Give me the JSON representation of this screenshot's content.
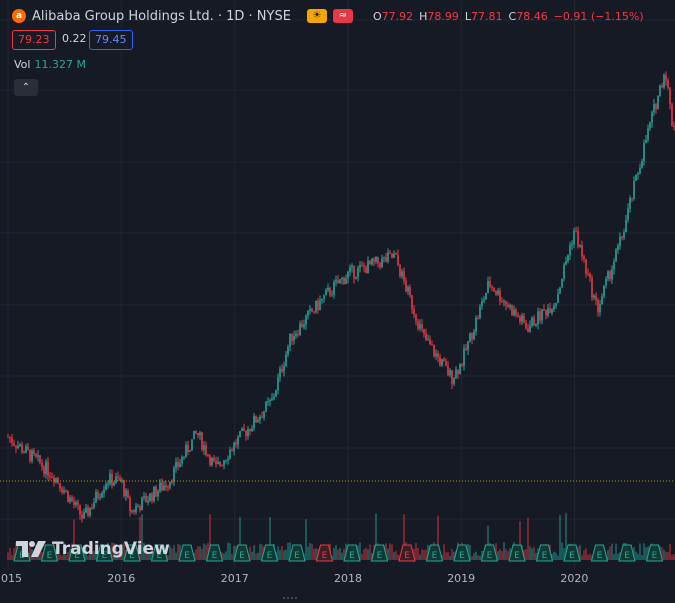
{
  "legend": {
    "symbol_logo": "a",
    "title": "Alibaba Group Holdings Ltd. · 1D · NYSE",
    "badges": [
      "☀",
      "≈"
    ],
    "o_label": "O",
    "o_value": "77.92",
    "h_label": "H",
    "h_value": "78.99",
    "l_label": "L",
    "l_value": "77.81",
    "c_label": "C",
    "c_value": "78.46",
    "change": "−0.91 (−1.15%)"
  },
  "trade": {
    "bid": "79.23",
    "spread": "0.22",
    "ask": "79.45"
  },
  "volume": {
    "label": "Vol",
    "value": "11.327 M"
  },
  "collapse_icon": "chevron-up-icon",
  "watermark": "TradingView",
  "colors": {
    "up": "#26a69a",
    "down": "#f23645",
    "background": "#161a25",
    "grid": "#232632",
    "price_line": "#b8a000"
  },
  "chart_data": {
    "type": "candlestick",
    "symbol": "Alibaba Group Holdings Ltd.",
    "interval": "1D",
    "exchange": "NYSE",
    "price_line_value": 79.23,
    "x_ticks": [
      "2015",
      "2016",
      "2017",
      "2018",
      "2019",
      "2020"
    ],
    "earnings_markers_count": 24,
    "closes": [
      {
        "date": "2015-01-01",
        "close": 104
      },
      {
        "date": "2015-06-01",
        "close": 82
      },
      {
        "date": "2015-09-01",
        "close": 58
      },
      {
        "date": "2015-11-15",
        "close": 80
      },
      {
        "date": "2016-01-01",
        "close": 79
      },
      {
        "date": "2016-02-01",
        "close": 62
      },
      {
        "date": "2016-06-01",
        "close": 79
      },
      {
        "date": "2016-09-01",
        "close": 106
      },
      {
        "date": "2016-11-01",
        "close": 86
      },
      {
        "date": "2017-01-01",
        "close": 100
      },
      {
        "date": "2017-05-01",
        "close": 124
      },
      {
        "date": "2017-07-01",
        "close": 160
      },
      {
        "date": "2017-11-01",
        "close": 185
      },
      {
        "date": "2018-01-01",
        "close": 195
      },
      {
        "date": "2018-06-01",
        "close": 205
      },
      {
        "date": "2018-09-01",
        "close": 160
      },
      {
        "date": "2018-12-01",
        "close": 137
      },
      {
        "date": "2019-01-01",
        "close": 145
      },
      {
        "date": "2019-04-01",
        "close": 190
      },
      {
        "date": "2019-08-01",
        "close": 165
      },
      {
        "date": "2019-11-01",
        "close": 180
      },
      {
        "date": "2020-01-01",
        "close": 220
      },
      {
        "date": "2020-03-15",
        "close": 175
      },
      {
        "date": "2020-06-01",
        "close": 215
      },
      {
        "date": "2020-08-15",
        "close": 268
      },
      {
        "date": "2020-10-20",
        "close": 310
      },
      {
        "date": "2020-11-10",
        "close": 280
      }
    ]
  }
}
